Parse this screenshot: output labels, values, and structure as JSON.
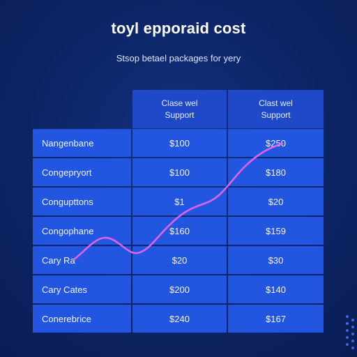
{
  "title": "toyl epporaid cost",
  "subtitle": "Stsop betael packages for yery",
  "chart_data": {
    "type": "table",
    "columns": [
      "",
      "Clase wel\nSupport",
      "Clast wel\nSupport"
    ],
    "rows": [
      {
        "label": "Nangenbane",
        "values": [
          "$100",
          "$250"
        ]
      },
      {
        "label": "Congepryort",
        "values": [
          "$100",
          "$180"
        ]
      },
      {
        "label": "Congupttons",
        "values": [
          "$1",
          "$20"
        ]
      },
      {
        "label": "Congophane",
        "values": [
          "$160",
          "$159"
        ]
      },
      {
        "label": "Cary Ra",
        "values": [
          "$20",
          "$30"
        ]
      },
      {
        "label": "Cary Cates",
        "values": [
          "$200",
          "$140"
        ]
      },
      {
        "label": "Conerebrice",
        "values": [
          "$240",
          "$167"
        ]
      }
    ],
    "overlay_line_color": "#e063ea"
  },
  "colors": {
    "background": "#0d2464",
    "header": "#1f49c8",
    "cell": "#2356e0"
  }
}
